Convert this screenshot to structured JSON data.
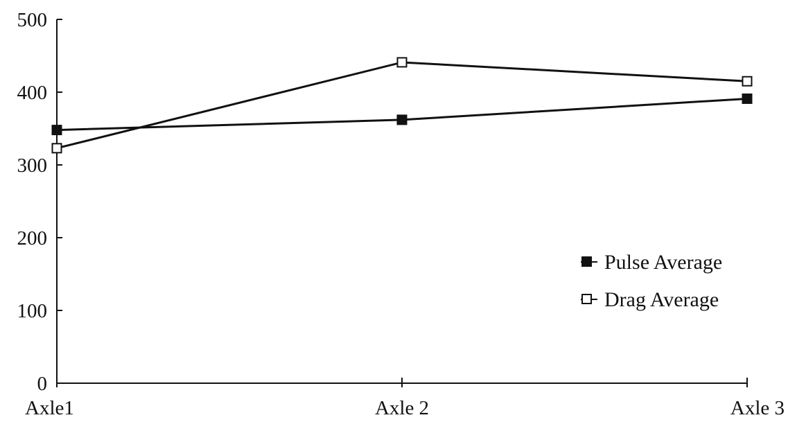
{
  "chart_data": {
    "type": "line",
    "categories": [
      "Axle1",
      "Axle 2",
      "Axle 3"
    ],
    "series": [
      {
        "name": "Pulse Average",
        "marker": "filled-square",
        "values": [
          348,
          362,
          391
        ]
      },
      {
        "name": "Drag Average",
        "marker": "open-square",
        "values": [
          323,
          441,
          415
        ]
      }
    ],
    "ylim": [
      0,
      500
    ],
    "yticks": [
      "0",
      "100",
      "200",
      "300",
      "400",
      "500"
    ],
    "grid": false,
    "legend_position": "right-center",
    "colors": {
      "line": "#111111",
      "background": "#ffffff"
    }
  }
}
